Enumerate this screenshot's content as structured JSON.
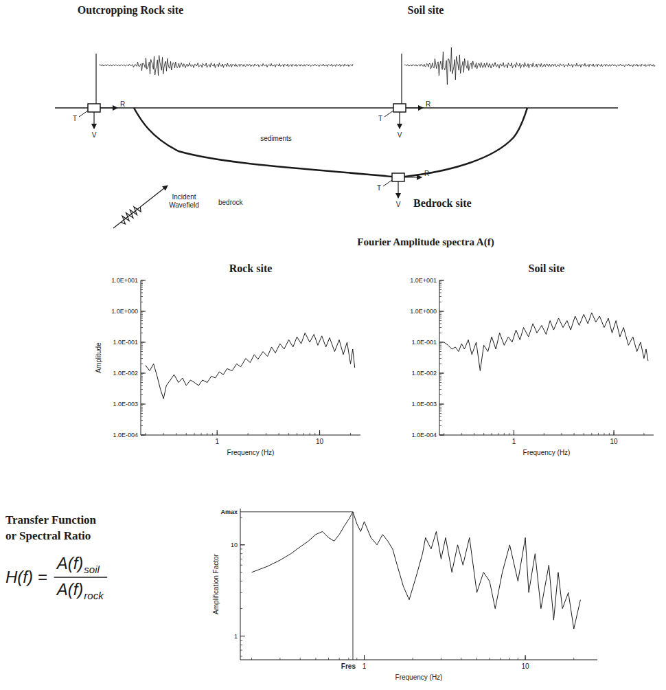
{
  "schematic": {
    "rock_title": "Outcropping Rock site",
    "soil_title": "Soil site",
    "bedrock_title": "Bedrock site",
    "sediments": "sediments",
    "bedrock": "bedrock",
    "incident": "Incident Wavefield",
    "components": [
      "R",
      "T",
      "V"
    ]
  },
  "spectra_title": "Fourier Amplitude spectra A(f)",
  "chart_data": [
    {
      "type": "line",
      "title": "Rock site",
      "x_label": "Frequency (Hz)",
      "y_label": "Amplitude",
      "log": true,
      "grid": false,
      "xlim": [
        0.18,
        25
      ],
      "ylim": [
        0.0001,
        10
      ],
      "xticks": [
        1,
        10
      ],
      "yticks": [
        {
          "value": 0.0001,
          "label": "1.0E-004"
        },
        {
          "value": 0.001,
          "label": "1.0E-003"
        },
        {
          "value": 0.01,
          "label": "1.0E-002"
        },
        {
          "value": 0.1,
          "label": "1.0E-001"
        },
        {
          "value": 1,
          "label": "1.0E+000"
        },
        {
          "value": 10,
          "label": "1.0E+001"
        }
      ],
      "color": "#1a1a1a",
      "x": [
        0.2,
        0.22,
        0.24,
        0.26,
        0.28,
        0.3,
        0.32,
        0.35,
        0.38,
        0.42,
        0.46,
        0.5,
        0.55,
        0.6,
        0.66,
        0.72,
        0.8,
        0.88,
        0.96,
        1.05,
        1.15,
        1.25,
        1.4,
        1.55,
        1.7,
        1.9,
        2.1,
        2.3,
        2.5,
        2.8,
        3.1,
        3.4,
        3.7,
        4.1,
        4.5,
        5,
        5.5,
        6,
        6.6,
        7.2,
        8,
        8.8,
        9.6,
        10.5,
        11.5,
        12.5,
        14,
        15.5,
        17,
        18.5,
        20,
        21,
        22
      ],
      "values": [
        0.018,
        0.012,
        0.02,
        0.008,
        0.003,
        0.0015,
        0.004,
        0.006,
        0.009,
        0.005,
        0.007,
        0.004,
        0.006,
        0.005,
        0.004,
        0.006,
        0.005,
        0.008,
        0.007,
        0.011,
        0.009,
        0.014,
        0.012,
        0.02,
        0.016,
        0.03,
        0.022,
        0.04,
        0.028,
        0.05,
        0.035,
        0.07,
        0.045,
        0.09,
        0.06,
        0.12,
        0.07,
        0.15,
        0.09,
        0.2,
        0.1,
        0.18,
        0.08,
        0.16,
        0.07,
        0.14,
        0.05,
        0.12,
        0.04,
        0.1,
        0.02,
        0.06,
        0.015
      ]
    },
    {
      "type": "line",
      "title": "Soil site",
      "x_label": "Frequency (Hz)",
      "log": true,
      "grid": false,
      "xlim": [
        0.18,
        25
      ],
      "ylim": [
        0.0001,
        10
      ],
      "xticks": [
        1,
        10
      ],
      "yticks": [
        {
          "value": 0.0001,
          "label": "1.0E-004"
        },
        {
          "value": 0.001,
          "label": "1.0E-003"
        },
        {
          "value": 0.01,
          "label": "1.0E-002"
        },
        {
          "value": 0.1,
          "label": "1.0E-001"
        },
        {
          "value": 1,
          "label": "1.0E+000"
        },
        {
          "value": 10,
          "label": "1.0E+001"
        }
      ],
      "color": "#1a1a1a",
      "x": [
        0.2,
        0.22,
        0.24,
        0.26,
        0.28,
        0.3,
        0.32,
        0.35,
        0.38,
        0.42,
        0.46,
        0.5,
        0.55,
        0.6,
        0.66,
        0.72,
        0.8,
        0.88,
        0.96,
        1.05,
        1.15,
        1.25,
        1.4,
        1.55,
        1.7,
        1.9,
        2.1,
        2.3,
        2.5,
        2.8,
        3.1,
        3.4,
        3.7,
        4.1,
        4.5,
        5,
        5.5,
        6,
        6.6,
        7.2,
        8,
        8.8,
        9.6,
        10.5,
        11.5,
        12.5,
        14,
        15.5,
        17,
        18.5,
        20,
        21,
        22
      ],
      "values": [
        0.1,
        0.08,
        0.06,
        0.07,
        0.05,
        0.09,
        0.06,
        0.12,
        0.04,
        0.1,
        0.012,
        0.08,
        0.05,
        0.15,
        0.06,
        0.2,
        0.08,
        0.15,
        0.1,
        0.25,
        0.12,
        0.3,
        0.15,
        0.4,
        0.2,
        0.35,
        0.18,
        0.5,
        0.25,
        0.6,
        0.3,
        0.5,
        0.25,
        0.7,
        0.35,
        0.8,
        0.4,
        0.9,
        0.45,
        0.7,
        0.3,
        0.6,
        0.2,
        0.5,
        0.15,
        0.3,
        0.08,
        0.15,
        0.05,
        0.1,
        0.03,
        0.06,
        0.025
      ]
    },
    {
      "type": "line",
      "x_label": "Frequency (Hz)",
      "y_label": "Amplification Factor",
      "log": true,
      "grid": false,
      "xlim": [
        0.17,
        28
      ],
      "ylim": [
        0.55,
        25
      ],
      "xticks": [
        1,
        10
      ],
      "yticks": [
        1,
        10
      ],
      "color": "#1a1a1a",
      "x": [
        0.2,
        0.25,
        0.3,
        0.35,
        0.4,
        0.45,
        0.5,
        0.55,
        0.6,
        0.65,
        0.7,
        0.75,
        0.8,
        0.85,
        0.9,
        0.95,
        1,
        1.1,
        1.2,
        1.3,
        1.4,
        1.5,
        1.6,
        1.75,
        1.9,
        2.1,
        2.3,
        2.4,
        2.6,
        2.8,
        3,
        3.2,
        3.5,
        3.8,
        4.1,
        4.5,
        5,
        5.5,
        6,
        6.5,
        7.2,
        8,
        9,
        10,
        10.5,
        11.5,
        12.5,
        14,
        15,
        16,
        17,
        18.5,
        20,
        22
      ],
      "values": [
        5,
        5.8,
        6.8,
        8,
        9.5,
        11,
        13,
        14,
        12,
        11,
        13,
        16,
        19,
        23,
        17,
        14,
        18,
        12,
        10,
        13,
        11,
        9,
        6,
        3.5,
        2.5,
        4.5,
        8,
        12,
        9,
        14,
        7,
        12,
        5,
        10,
        6,
        12,
        3,
        5,
        4,
        2,
        5,
        10,
        4,
        12,
        3,
        8,
        2,
        6,
        1.5,
        5,
        2,
        3,
        1.2,
        2.5
      ],
      "annotations": [
        {
          "text": "Amax",
          "y": 23
        },
        {
          "text": "Fres",
          "x": 0.85
        }
      ]
    }
  ],
  "transfer": {
    "title_lines": [
      "Transfer Function",
      "or Spectral Ratio"
    ],
    "formula": {
      "lhs": "H(f) =",
      "numerator": "A(f)",
      "numerator_sub": "soil",
      "denominator": "A(f)",
      "denominator_sub": "rock"
    }
  }
}
